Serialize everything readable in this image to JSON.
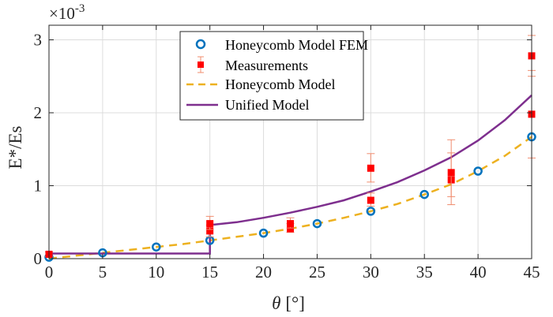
{
  "chart_data": {
    "type": "scatter",
    "title": "",
    "xlabel_symbol": "θ",
    "xlabel_unit": "[°]",
    "ylabel": "E*/Es",
    "exponent_base": "×10",
    "exponent_power": "-3",
    "xlim": [
      0,
      45
    ],
    "ylim": [
      0,
      3.2
    ],
    "xticks": [
      0,
      5,
      10,
      15,
      20,
      25,
      30,
      35,
      40,
      45
    ],
    "yticks": [
      0,
      1,
      2,
      3
    ],
    "grid": true,
    "legend_position": "top-center",
    "series": [
      {
        "name": "Honeycomb Model FEM",
        "kind": "markers-circle",
        "color": "#0072BD",
        "x": [
          0,
          5,
          10,
          15,
          20,
          25,
          30,
          35,
          40,
          45
        ],
        "y": [
          0.02,
          0.08,
          0.16,
          0.25,
          0.35,
          0.48,
          0.65,
          0.88,
          1.2,
          1.67
        ]
      },
      {
        "name": "Measurements",
        "kind": "markers-square-errorbar",
        "color": "#FF0000",
        "error_color": "#F08C6E",
        "points": [
          {
            "x": 0,
            "y": 0.06,
            "lo": 0.03,
            "hi": 0.09
          },
          {
            "x": 15,
            "y": 0.38,
            "lo": 0.3,
            "hi": 0.46
          },
          {
            "x": 15,
            "y": 0.48,
            "lo": 0.4,
            "hi": 0.58
          },
          {
            "x": 22.5,
            "y": 0.41,
            "lo": 0.36,
            "hi": 0.48
          },
          {
            "x": 22.5,
            "y": 0.48,
            "lo": 0.42,
            "hi": 0.56
          },
          {
            "x": 30,
            "y": 0.8,
            "lo": 0.72,
            "hi": 0.9
          },
          {
            "x": 30,
            "y": 1.24,
            "lo": 1.05,
            "hi": 1.44
          },
          {
            "x": 37.5,
            "y": 1.08,
            "lo": 0.74,
            "hi": 1.45
          },
          {
            "x": 37.5,
            "y": 1.18,
            "lo": 0.85,
            "hi": 1.63
          },
          {
            "x": 45,
            "y": 1.98,
            "lo": 1.38,
            "hi": 2.58
          },
          {
            "x": 45,
            "y": 2.78,
            "lo": 2.5,
            "hi": 3.06
          }
        ]
      },
      {
        "name": "Honeycomb Model",
        "kind": "line-dashed",
        "color": "#EDB120",
        "x": [
          0,
          2.5,
          5,
          7.5,
          10,
          12.5,
          15,
          17.5,
          20,
          22.5,
          25,
          27.5,
          30,
          32.5,
          35,
          37.5,
          40,
          42.5,
          45
        ],
        "y": [
          0.0,
          0.04,
          0.08,
          0.12,
          0.16,
          0.2,
          0.25,
          0.3,
          0.35,
          0.41,
          0.48,
          0.56,
          0.65,
          0.75,
          0.88,
          1.02,
          1.2,
          1.41,
          1.67
        ]
      },
      {
        "name": "Unified Model",
        "kind": "line-solid",
        "color": "#7E2F8E",
        "x": [
          0,
          15,
          15,
          17.5,
          20,
          22.5,
          25,
          27.5,
          30,
          32.5,
          35,
          37.5,
          40,
          42.5,
          45
        ],
        "y": [
          0.07,
          0.07,
          0.46,
          0.5,
          0.56,
          0.63,
          0.71,
          0.8,
          0.92,
          1.05,
          1.21,
          1.39,
          1.62,
          1.9,
          2.24
        ]
      }
    ]
  }
}
